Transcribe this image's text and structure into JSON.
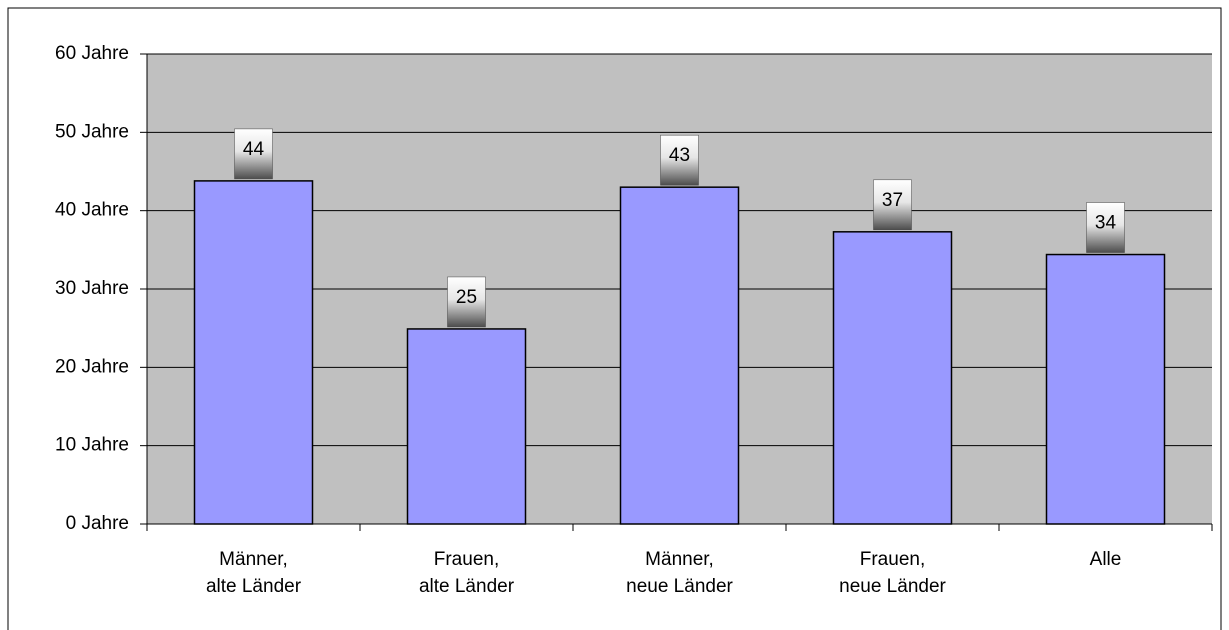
{
  "chart_data": {
    "type": "bar",
    "categories": [
      "Männer,\nalte Länder",
      "Frauen,\nalte Länder",
      "Männer,\nneue Länder",
      "Frauen,\nneue Länder",
      "Alle"
    ],
    "values": [
      43.8,
      24.9,
      43.0,
      37.3,
      34.4
    ],
    "value_labels": [
      "44",
      "25",
      "43",
      "37",
      "34"
    ],
    "color": "#9999ff",
    "ylim": [
      0,
      60
    ],
    "yticks": [
      {
        "value": 0,
        "label": "0 Jahre"
      },
      {
        "value": 10,
        "label": "10 Jahre"
      },
      {
        "value": 20,
        "label": "20 Jahre"
      },
      {
        "value": 30,
        "label": "30 Jahre"
      },
      {
        "value": 40,
        "label": "40 Jahre"
      },
      {
        "value": 50,
        "label": "50 Jahre"
      },
      {
        "value": 60,
        "label": "60 Jahre"
      }
    ],
    "grid": true
  }
}
